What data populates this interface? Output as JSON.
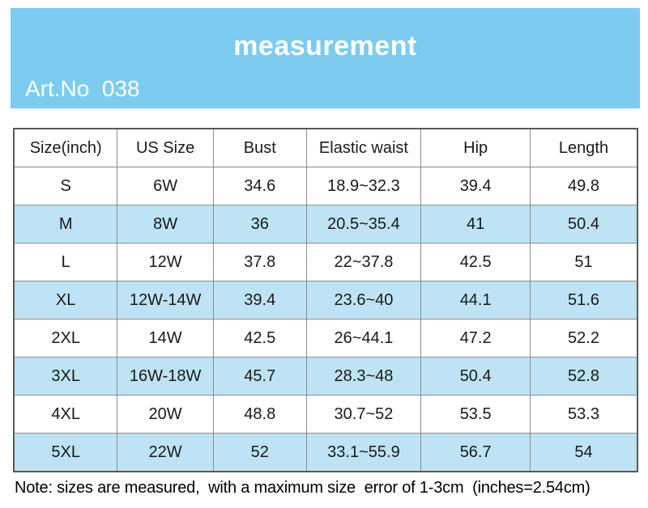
{
  "banner": {
    "title": "measurement",
    "art_no": "Art.No  038"
  },
  "chart_data": {
    "type": "table",
    "title": "measurement",
    "columns": [
      "Size(inch)",
      "US Size",
      "Bust",
      "Elastic waist",
      "Hip",
      "Length"
    ],
    "rows": [
      [
        "S",
        "6W",
        "34.6",
        "18.9~32.3",
        "39.4",
        "49.8"
      ],
      [
        "M",
        "8W",
        "36",
        "20.5~35.4",
        "41",
        "50.4"
      ],
      [
        "L",
        "12W",
        "37.8",
        "22~37.8",
        "42.5",
        "51"
      ],
      [
        "XL",
        "12W-14W",
        "39.4",
        "23.6~40",
        "44.1",
        "51.6"
      ],
      [
        "2XL",
        "14W",
        "42.5",
        "26~44.1",
        "47.2",
        "52.2"
      ],
      [
        "3XL",
        "16W-18W",
        "45.7",
        "28.3~48",
        "50.4",
        "52.8"
      ],
      [
        "4XL",
        "20W",
        "48.8",
        "30.7~52",
        "53.5",
        "53.3"
      ],
      [
        "5XL",
        "22W",
        "52",
        "33.1~55.9",
        "56.7",
        "54"
      ]
    ],
    "highlighted_rows": [
      "M",
      "XL",
      "3XL",
      "5XL"
    ],
    "layout": {
      "grid": true,
      "alternating_row_shading": true
    }
  },
  "note": "Note: sizes are measured,  with a maximum size  error of 1-3cm  (inches=2.54cm)",
  "colors": {
    "banner-bg": "#7DCBEF",
    "row-highlight": "#BEE3F4",
    "grid-line": "#8C8C8C",
    "outer-border": "#595959",
    "text": "#1A1A1A",
    "banner-text": "#FFFFFF"
  }
}
